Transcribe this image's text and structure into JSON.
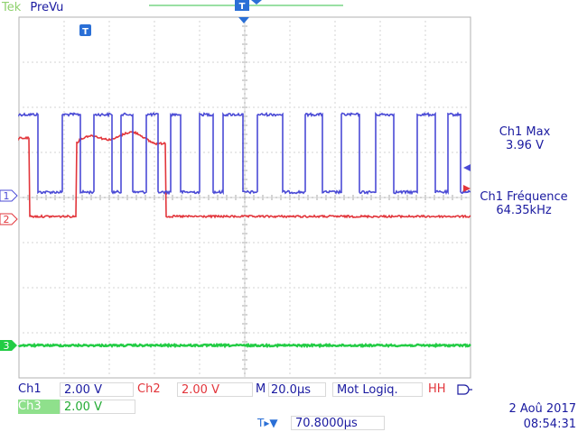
{
  "header": {
    "brand": "Tek",
    "state": "PreVu"
  },
  "markers": {
    "trigger_label": "T",
    "ch1_label": "1",
    "ch2_label": "2",
    "ch3_label": "3"
  },
  "measurements": {
    "m1_title": "Ch1 Max",
    "m1_value": "3.96 V",
    "m2_title": "Ch1 Fréquence",
    "m2_value": "64.35kHz"
  },
  "footer": {
    "ch1_name": "Ch1",
    "ch1_scale": "2.00 V",
    "ch2_name": "Ch2",
    "ch2_scale": "2.00 V",
    "timebase_prefix": "M",
    "timebase": "20.0µs",
    "trigger_mode": "Mot Logiq.",
    "trigger_pattern": "HH",
    "ch3_name": "Ch3",
    "ch3_scale": "2.00 V",
    "trig_pos_prefix": "T▸▼",
    "trig_position": "70.8000µs",
    "date": "2 Aoû 2017",
    "time": "08:54:31"
  },
  "colors": {
    "ch1": "#4b4bd6",
    "ch2": "#e2353b",
    "ch3": "#22cc44",
    "grid": "#bfbfbf",
    "text": "#1a1aa0"
  }
}
